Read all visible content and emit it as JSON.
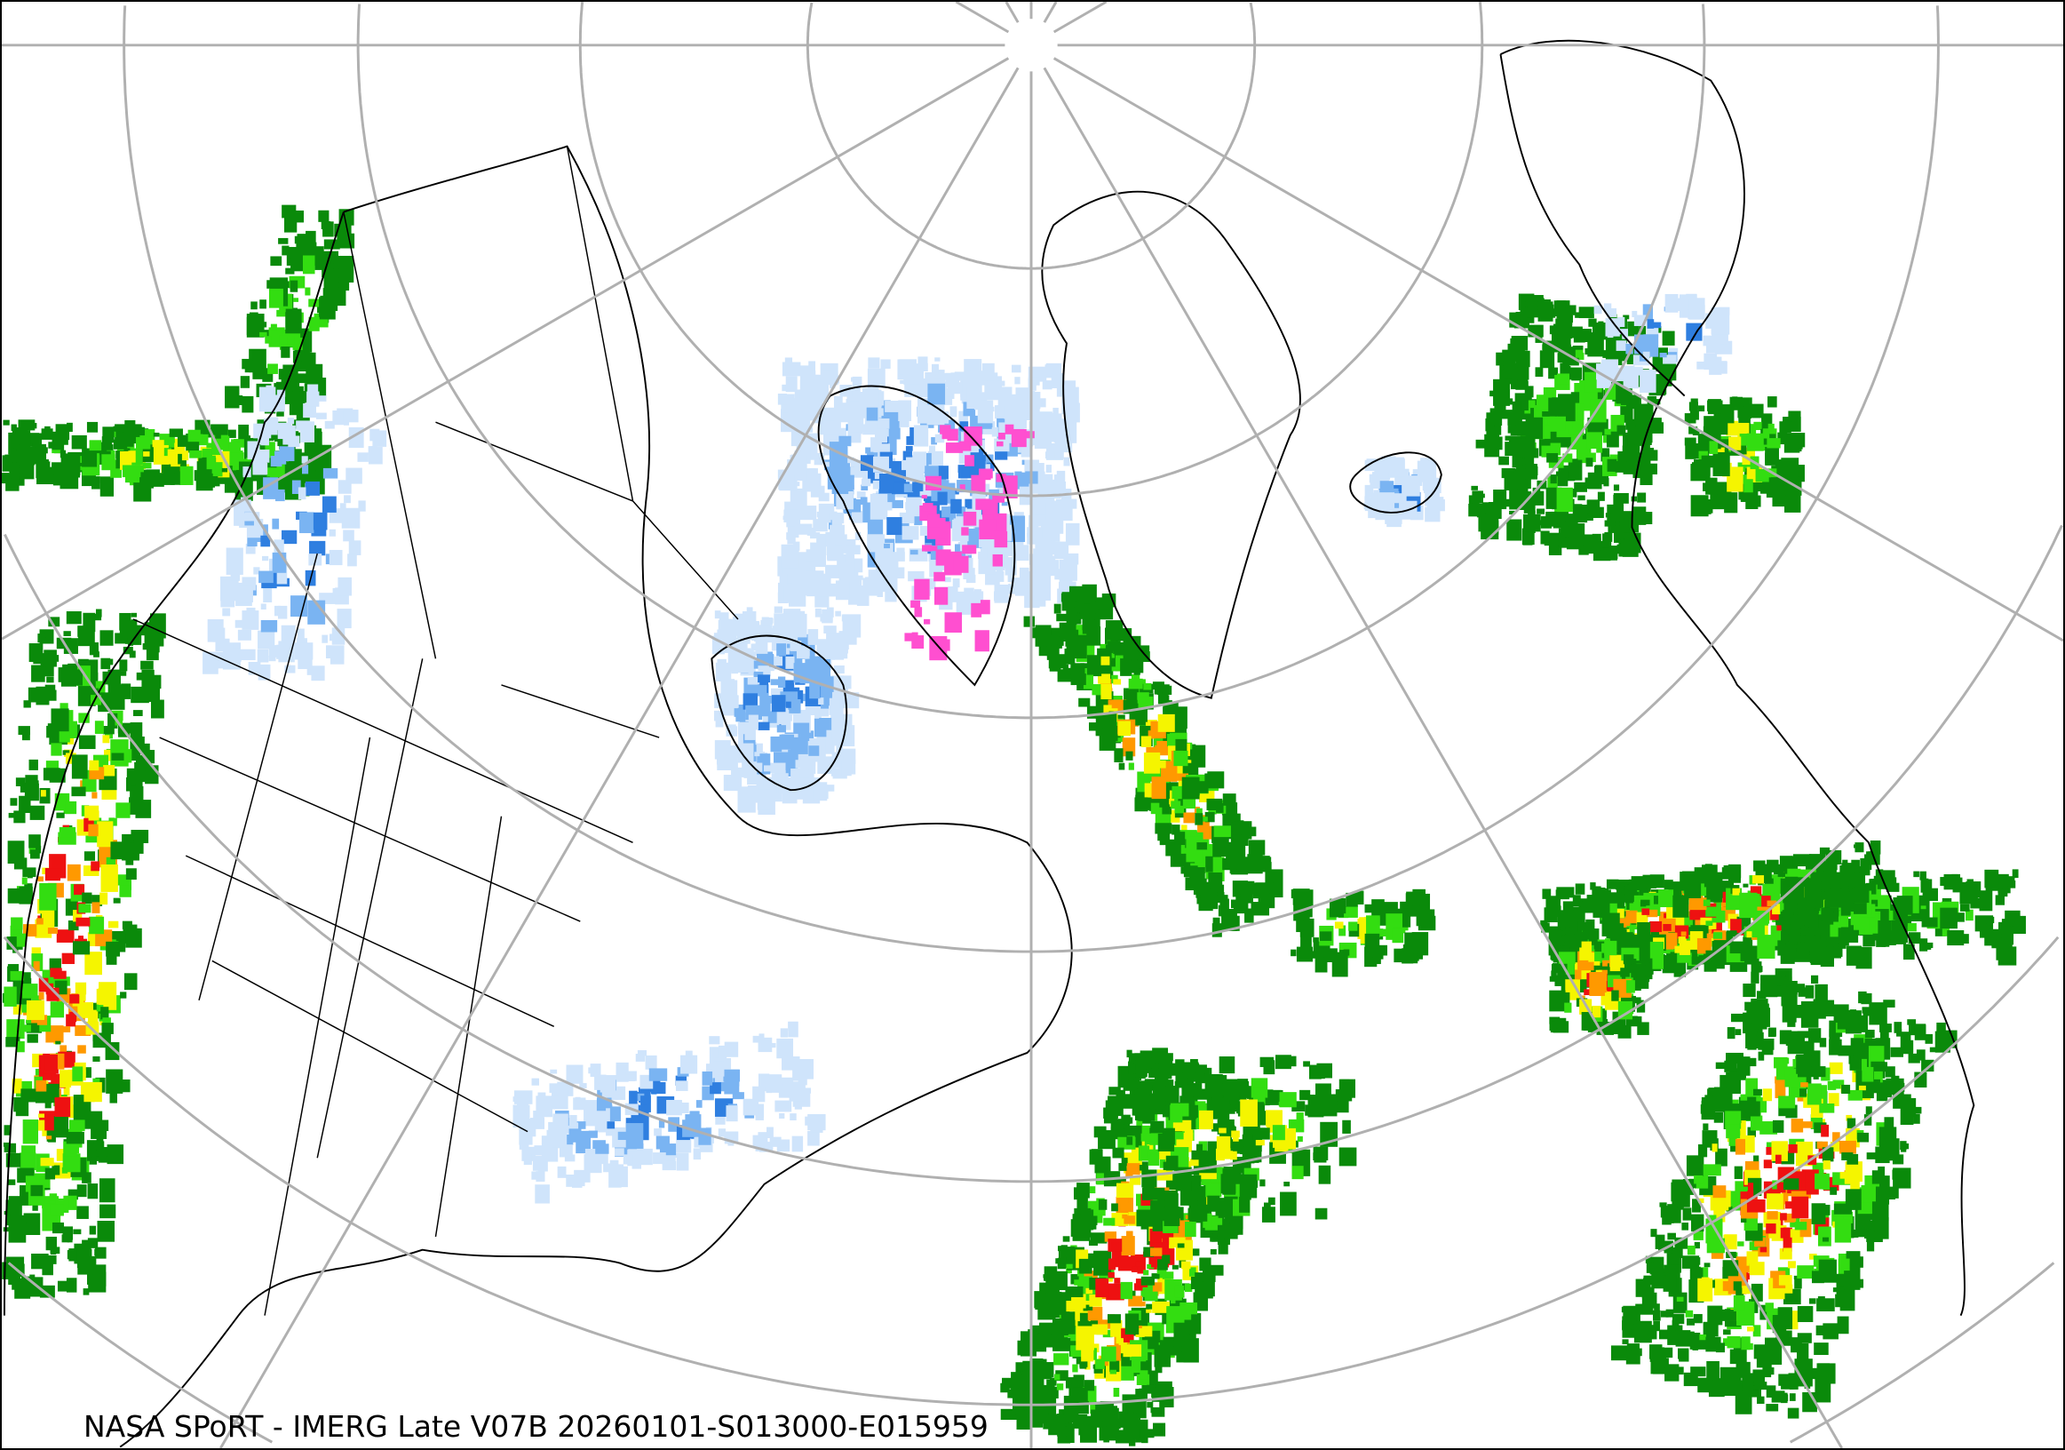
{
  "caption": "NASA SPoRT - IMERG Late V07B 20260101-S013000-E015959",
  "map": {
    "projection": "north-polar stereographic",
    "graticule_color": "#b0b0b0",
    "coastline_color": "#000000",
    "precip_colors": {
      "snow_light": "#cfe4fb",
      "snow_medium": "#7ab4f2",
      "snow_heavy": "#2f7fe0",
      "mixed": "#ff4fd0",
      "rain_light": "#0a8a0a",
      "rain_medium": "#33dd11",
      "rain_heavy": "#f5f500",
      "rain_very_heavy": "#ff9900",
      "rain_extreme": "#ee1111"
    }
  }
}
